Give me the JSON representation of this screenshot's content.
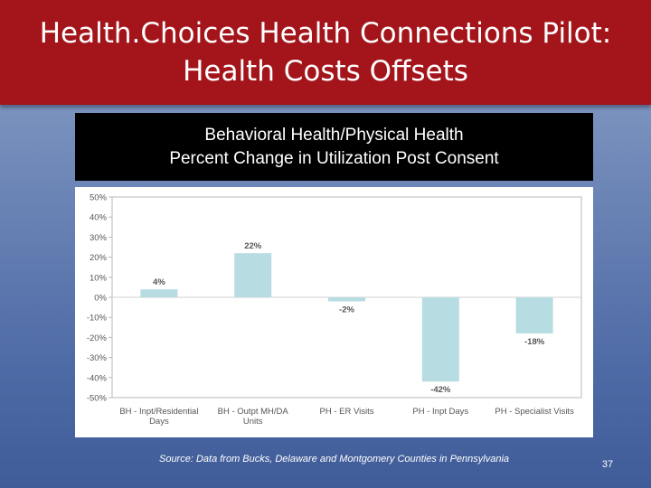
{
  "slide": {
    "title_line1": "Health.Choices Health Connections Pilot:",
    "title_line2": "Health Costs Offsets",
    "source": "Source: Data from Bucks, Delaware and Montgomery Counties in Pennsylvania",
    "page_number": "37"
  },
  "chart_data": {
    "type": "bar",
    "title_line1": "Behavioral Health/Physical Health",
    "title_line2": "Percent Change in Utilization Post Consent",
    "categories": [
      [
        "BH - Inpt/Residential",
        "Days"
      ],
      [
        "BH - Outpt MH/DA",
        "Units"
      ],
      [
        "PH - ER Visits"
      ],
      [
        "PH - Inpt Days"
      ],
      [
        "PH - Specialist Visits"
      ]
    ],
    "values": [
      4,
      22,
      -2,
      -42,
      -18
    ],
    "data_labels": [
      "4%",
      "22%",
      "-2%",
      "-42%",
      "-18%"
    ],
    "ylim": [
      -50,
      50
    ],
    "yticks": [
      "50%",
      "40%",
      "30%",
      "20%",
      "10%",
      "0%",
      "-10%",
      "-20%",
      "-30%",
      "-40%",
      "-50%"
    ],
    "ytick_values": [
      50,
      40,
      30,
      20,
      10,
      0,
      -10,
      -20,
      -30,
      -40,
      -50
    ],
    "bar_color": "#b7dde2",
    "xlabel": "",
    "ylabel": "",
    "grid": false
  }
}
